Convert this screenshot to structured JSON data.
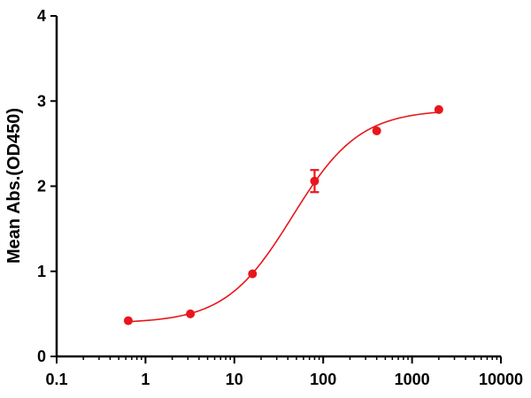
{
  "chart_data": {
    "type": "scatter",
    "title": "",
    "xlabel": "",
    "ylabel": "Mean Abs.(OD450)",
    "x_scale": "log10",
    "xlim": [
      0.1,
      10000
    ],
    "ylim": [
      0,
      4
    ],
    "x_ticks": [
      0.1,
      1,
      10,
      100,
      1000,
      10000
    ],
    "x_tick_labels": [
      "0.1",
      "1",
      "10",
      "100",
      "1000",
      "10000"
    ],
    "y_ticks": [
      0,
      1,
      2,
      3,
      4
    ],
    "y_tick_labels": [
      "0",
      "1",
      "2",
      "3",
      "4"
    ],
    "grid": false,
    "legend": "none",
    "color": "#e8161b",
    "series": [
      {
        "points": [
          {
            "x": 0.64,
            "y": 0.42
          },
          {
            "x": 3.2,
            "y": 0.5
          },
          {
            "x": 16,
            "y": 0.97
          },
          {
            "x": 80,
            "y": 2.06,
            "err": 0.13
          },
          {
            "x": 400,
            "y": 2.65
          },
          {
            "x": 2000,
            "y": 2.9
          }
        ],
        "fit": {
          "model": "4PL",
          "bottom": 0.39,
          "top": 2.9,
          "ec50": 45,
          "hill": 1.15
        }
      }
    ]
  }
}
